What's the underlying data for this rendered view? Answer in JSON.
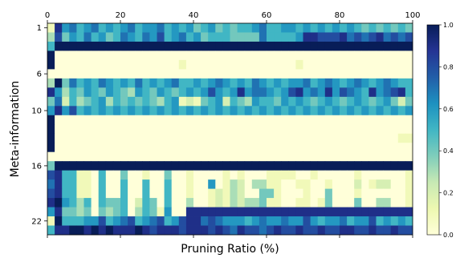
{
  "chart_data": {
    "type": "heatmap",
    "xlabel": "Pruning Ratio (%)",
    "ylabel": "Meta-information",
    "xlim": [
      0,
      100
    ],
    "x_ticks": [
      "0",
      "20",
      "40",
      "60",
      "80",
      "100"
    ],
    "y_ticks": [
      "1",
      "6",
      "10",
      "16",
      "22"
    ],
    "y_tick_rows": [
      1,
      6,
      10,
      16,
      22
    ],
    "row_count": 23,
    "colorbar": {
      "range": [
        0.0,
        1.0
      ],
      "ticks": [
        "0.0",
        "0.2",
        "0.4",
        "0.6",
        "0.8",
        "1.0"
      ],
      "colormap": "YlGnBu",
      "stops": [
        "#ffffd9",
        "#edf8b1",
        "#c7e9b4",
        "#7fcdbb",
        "#41b6c4",
        "#1d91c0",
        "#225ea8",
        "#253494",
        "#081d58"
      ]
    },
    "rows": [
      [
        0.1,
        0.9,
        0.6,
        0.7,
        0.5,
        0.6,
        0.7,
        0.5,
        0.6,
        0.5,
        0.6,
        0.7,
        0.5,
        0.6,
        0.6,
        0.7,
        0.5,
        0.6,
        0.5,
        0.6,
        0.4,
        0.5,
        0.6,
        0.4,
        0.5,
        0.4,
        0.5,
        0.5,
        0.6,
        0.7,
        0.5,
        0.5,
        0.6,
        0.6,
        0.5,
        0.6,
        0.5,
        0.6,
        0.5,
        0.6,
        0.5,
        0.6,
        0.5,
        0.4,
        0.5,
        0.4,
        0.5,
        0.4,
        0.5,
        0.4
      ],
      [
        0.3,
        0.8,
        0.4,
        0.6,
        0.5,
        0.7,
        0.5,
        0.6,
        0.4,
        0.5,
        0.7,
        0.6,
        0.5,
        0.7,
        0.6,
        0.8,
        0.5,
        0.6,
        0.7,
        0.5,
        0.6,
        0.4,
        0.5,
        0.5,
        0.5,
        0.4,
        0.4,
        0.4,
        0.4,
        0.7,
        0.5,
        0.5,
        0.5,
        0.5,
        0.6,
        0.9,
        0.9,
        0.8,
        0.8,
        0.8,
        0.9,
        0.7,
        0.8,
        0.7,
        0.8,
        0.9,
        0.7,
        0.8,
        0.7,
        0.8
      ],
      [
        0.5,
        1,
        1,
        1,
        1,
        1,
        1,
        1,
        1,
        1,
        1,
        1,
        1,
        1,
        1,
        1,
        1,
        1,
        1,
        1,
        1,
        1,
        1,
        1,
        1,
        1,
        1,
        1,
        1,
        1,
        1,
        1,
        1,
        1,
        1,
        1,
        1,
        1,
        1,
        1,
        1,
        1,
        1,
        1,
        1,
        1,
        1,
        1,
        1,
        1
      ],
      [
        1,
        0,
        0,
        0,
        0,
        0,
        0,
        0,
        0,
        0,
        0,
        0,
        0,
        0,
        0,
        0,
        0,
        0,
        0,
        0,
        0,
        0,
        0,
        0,
        0,
        0,
        0,
        0,
        0,
        0,
        0,
        0,
        0,
        0,
        0,
        0,
        0,
        0,
        0,
        0,
        0,
        0,
        0,
        0,
        0,
        0,
        0,
        0,
        0,
        0
      ],
      [
        1,
        0,
        0,
        0,
        0,
        0,
        0,
        0,
        0,
        0,
        0,
        0,
        0,
        0,
        0,
        0,
        0,
        0,
        0.1,
        0,
        0,
        0,
        0,
        0,
        0,
        0,
        0,
        0,
        0,
        0,
        0,
        0,
        0,
        0,
        0.1,
        0,
        0,
        0,
        0,
        0,
        0,
        0,
        0,
        0,
        0,
        0,
        0,
        0,
        0,
        0
      ],
      [
        0,
        0,
        0,
        0,
        0,
        0,
        0,
        0,
        0,
        0,
        0,
        0,
        0,
        0,
        0,
        0,
        0,
        0,
        0,
        0,
        0,
        0,
        0,
        0,
        0,
        0,
        0,
        0,
        0,
        0,
        0,
        0,
        0,
        0,
        0,
        0,
        0,
        0,
        0,
        0,
        0,
        0,
        0,
        0,
        0,
        0,
        0,
        0,
        0,
        0
      ],
      [
        0.3,
        1,
        0.4,
        0.7,
        0.5,
        0.6,
        0.5,
        0.7,
        0.6,
        0.5,
        0.6,
        0.5,
        0.7,
        0.5,
        0.6,
        0.5,
        0.6,
        0.7,
        0.5,
        0.5,
        0.6,
        0.5,
        0.6,
        0.7,
        0.6,
        0.5,
        0.6,
        0.5,
        0.7,
        0.6,
        0.5,
        0.6,
        0.5,
        0.6,
        0.6,
        0.7,
        0.5,
        0.6,
        0.7,
        0.6,
        0.5,
        0.6,
        0.7,
        0.6,
        0.5,
        0.6,
        0.7,
        0.6,
        0.5,
        0.5
      ],
      [
        0.9,
        0.6,
        0.3,
        0.5,
        0.4,
        0.6,
        0.5,
        0.4,
        0.6,
        0.5,
        0.4,
        0.3,
        0.6,
        0.5,
        0.4,
        0.6,
        0.5,
        0.4,
        0.5,
        0.6,
        0.5,
        0.6,
        0.8,
        0.6,
        0.5,
        0.6,
        0.9,
        0.6,
        0.7,
        0.7,
        0.6,
        0.5,
        0.6,
        0.8,
        0.9,
        0.6,
        0.7,
        0.6,
        0.9,
        0.6,
        0.8,
        0.7,
        0.6,
        0.5,
        0.9,
        0.6,
        0.7,
        0.8,
        0.9,
        0.5
      ],
      [
        0.4,
        0.7,
        0.2,
        0.5,
        0.3,
        0.4,
        0.5,
        0.6,
        0.3,
        0.5,
        0.4,
        0.5,
        0.4,
        0.5,
        0.4,
        0.3,
        0.5,
        0.6,
        0.1,
        0.2,
        0.1,
        0.4,
        0.5,
        0.6,
        0.2,
        0.5,
        0.4,
        0.3,
        0.6,
        0.5,
        0.5,
        0.4,
        0.6,
        0.5,
        0.6,
        0.5,
        0.4,
        0.5,
        0.6,
        0.5,
        0.4,
        0.5,
        0.6,
        0.5,
        0.4,
        0.5,
        0.6,
        0.4,
        0.2,
        0.4
      ],
      [
        0.6,
        0.9,
        0.6,
        0.8,
        0.5,
        0.6,
        0.5,
        0.6,
        0.5,
        0.6,
        0.5,
        0.6,
        0.5,
        0.6,
        0.5,
        0.6,
        0.5,
        0.6,
        0.5,
        0.6,
        0.5,
        0.6,
        0.5,
        0.6,
        0.5,
        0.6,
        0.5,
        0.6,
        0.5,
        0.6,
        0.5,
        0.6,
        0.5,
        0.6,
        0.5,
        0.6,
        0.5,
        0.6,
        0.5,
        0.6,
        0.5,
        0.6,
        0.5,
        0.6,
        0.5,
        0.6,
        0.5,
        0.6,
        0.5,
        0.6
      ],
      [
        1,
        0,
        0,
        0,
        0,
        0,
        0,
        0,
        0,
        0,
        0,
        0,
        0,
        0,
        0,
        0,
        0,
        0,
        0,
        0,
        0,
        0,
        0,
        0,
        0,
        0,
        0,
        0,
        0,
        0,
        0,
        0,
        0,
        0,
        0,
        0,
        0,
        0,
        0,
        0,
        0,
        0,
        0,
        0,
        0,
        0,
        0,
        0,
        0,
        0
      ],
      [
        1,
        0,
        0,
        0,
        0,
        0,
        0,
        0,
        0,
        0,
        0,
        0,
        0,
        0,
        0,
        0,
        0,
        0,
        0,
        0,
        0,
        0,
        0,
        0,
        0,
        0,
        0,
        0,
        0,
        0,
        0,
        0,
        0,
        0,
        0,
        0,
        0,
        0,
        0,
        0,
        0,
        0,
        0,
        0,
        0,
        0,
        0,
        0,
        0,
        0
      ],
      [
        1,
        0,
        0,
        0,
        0,
        0,
        0,
        0,
        0,
        0,
        0,
        0,
        0,
        0,
        0,
        0,
        0,
        0,
        0,
        0,
        0,
        0,
        0,
        0,
        0,
        0,
        0,
        0,
        0,
        0,
        0,
        0,
        0,
        0,
        0,
        0,
        0,
        0,
        0,
        0,
        0,
        0,
        0,
        0,
        0,
        0,
        0,
        0,
        0.1,
        0.1
      ],
      [
        1,
        0,
        0,
        0,
        0,
        0,
        0,
        0,
        0,
        0,
        0,
        0,
        0,
        0,
        0,
        0,
        0,
        0,
        0,
        0,
        0,
        0,
        0,
        0,
        0,
        0,
        0,
        0,
        0,
        0,
        0,
        0,
        0,
        0,
        0,
        0,
        0,
        0,
        0,
        0,
        0,
        0,
        0,
        0,
        0,
        0,
        0,
        0,
        0,
        0
      ],
      [
        0,
        0,
        0,
        0,
        0,
        0,
        0,
        0,
        0,
        0,
        0,
        0,
        0,
        0,
        0,
        0,
        0,
        0,
        0,
        0,
        0,
        0,
        0,
        0,
        0,
        0,
        0,
        0,
        0,
        0,
        0,
        0,
        0,
        0,
        0,
        0,
        0,
        0,
        0,
        0,
        0,
        0,
        0,
        0,
        0,
        0,
        0,
        0,
        0,
        0
      ],
      [
        0.4,
        1,
        1,
        1,
        1,
        1,
        1,
        1,
        1,
        1,
        1,
        1,
        1,
        1,
        1,
        1,
        1,
        1,
        1,
        1,
        1,
        1,
        1,
        1,
        1,
        1,
        1,
        1,
        1,
        1,
        1,
        1,
        1,
        1,
        1,
        1,
        1,
        1,
        1,
        1,
        1,
        1,
        1,
        1,
        1,
        1,
        1,
        1,
        1,
        1
      ],
      [
        0.8,
        0.9,
        0.5,
        0.5,
        0.1,
        0.1,
        0,
        0.5,
        0,
        0,
        0.4,
        0,
        0,
        0.1,
        0,
        0,
        0.4,
        0,
        0,
        0.1,
        0,
        0,
        0,
        0,
        0.1,
        0,
        0.1,
        0,
        0,
        0,
        0.1,
        0.1,
        0.1,
        0.1,
        0,
        0,
        0.1,
        0,
        0,
        0,
        0,
        0,
        0.1,
        0,
        0,
        0,
        0,
        0,
        0,
        0.1
      ],
      [
        0.7,
        0.9,
        0.5,
        0.5,
        0.1,
        0.1,
        0,
        0.5,
        0,
        0,
        0.5,
        0,
        0,
        0.5,
        0,
        0,
        0.5,
        0,
        0,
        0.1,
        0,
        0,
        0.6,
        0,
        0.1,
        0.3,
        0.2,
        0,
        0.3,
        0.3,
        0.1,
        0.1,
        0,
        0,
        0.1,
        0.1,
        0,
        0,
        0.1,
        0,
        0,
        0,
        0.2,
        0,
        0.1,
        0.2,
        0.2,
        0,
        0,
        0.1
      ],
      [
        0.8,
        0.9,
        0.5,
        0.5,
        0.1,
        0.1,
        0,
        0.5,
        0,
        0,
        0.5,
        0,
        0,
        0.5,
        0,
        0,
        0.5,
        0,
        0,
        0.1,
        0,
        0,
        0.1,
        0.2,
        0.1,
        0.3,
        0.2,
        0,
        0,
        0.4,
        0.4,
        0.1,
        0,
        0,
        0,
        0.1,
        0,
        0,
        0.4,
        0,
        0,
        0,
        0.1,
        0,
        0,
        0,
        0,
        0,
        0,
        0.1
      ],
      [
        0.9,
        1,
        0.6,
        0.5,
        0.3,
        0.5,
        0,
        0.5,
        0.4,
        0.4,
        0.5,
        0,
        0.2,
        0.5,
        0.4,
        0,
        0.5,
        0,
        0,
        0.3,
        0,
        0,
        0.1,
        0.2,
        0.1,
        0.3,
        0.2,
        0.3,
        0.3,
        0.4,
        0.1,
        0.1,
        0,
        0,
        0.1,
        0.1,
        0,
        0.1,
        0.4,
        0,
        0,
        0,
        0.4,
        0,
        0,
        0.3,
        0.3,
        0,
        0,
        0.1
      ],
      [
        0.6,
        0.9,
        0.4,
        0.4,
        0.3,
        0.4,
        0,
        0.4,
        0.3,
        0.4,
        0.5,
        0,
        0.3,
        0.5,
        0.4,
        0.1,
        0.6,
        0,
        0,
        0.9,
        0.9,
        0.9,
        0.9,
        0.9,
        0.9,
        0.9,
        0.9,
        0.9,
        0.9,
        0.9,
        0.9,
        0.9,
        0.9,
        0.9,
        0.9,
        0.9,
        0.9,
        0.9,
        0.9,
        0.9,
        0.9,
        0.9,
        0.9,
        0.9,
        0.9,
        0.9,
        0.9,
        0.9,
        0.9,
        0.9
      ],
      [
        0.1,
        1,
        0.5,
        0.5,
        0.5,
        0.6,
        0.6,
        0.8,
        0.5,
        0.6,
        0.7,
        0.8,
        0.5,
        0.6,
        0.7,
        0.8,
        0.5,
        0.6,
        0.8,
        0.9,
        0.9,
        0.7,
        0.8,
        0.7,
        0.6,
        0.6,
        0.6,
        0.5,
        0.6,
        0.7,
        0.6,
        0.6,
        0.7,
        0.6,
        0.6,
        0.8,
        0.6,
        0.5,
        0.6,
        0.6,
        0.7,
        0.5,
        0.6,
        0.6,
        0.8,
        0.5,
        0.6,
        0.5,
        0.6,
        0.5
      ],
      [
        0.5,
        0.9,
        0.9,
        1,
        1,
        0.9,
        1,
        0.9,
        1,
        0.9,
        0.9,
        0.9,
        1,
        0.9,
        0.8,
        0.9,
        0.9,
        0.9,
        0.8,
        0.9,
        0.9,
        0.9,
        0.8,
        0.9,
        0.8,
        0.7,
        0.9,
        0.8,
        0.8,
        0.7,
        0.8,
        0.9,
        0.8,
        0.8,
        0.9,
        0.8,
        0.8,
        0.9,
        0.8,
        0.8,
        0.9,
        0.9,
        0.8,
        0.8,
        0.9,
        0.8,
        0.8,
        0.9,
        0.8,
        0.8
      ]
    ]
  }
}
